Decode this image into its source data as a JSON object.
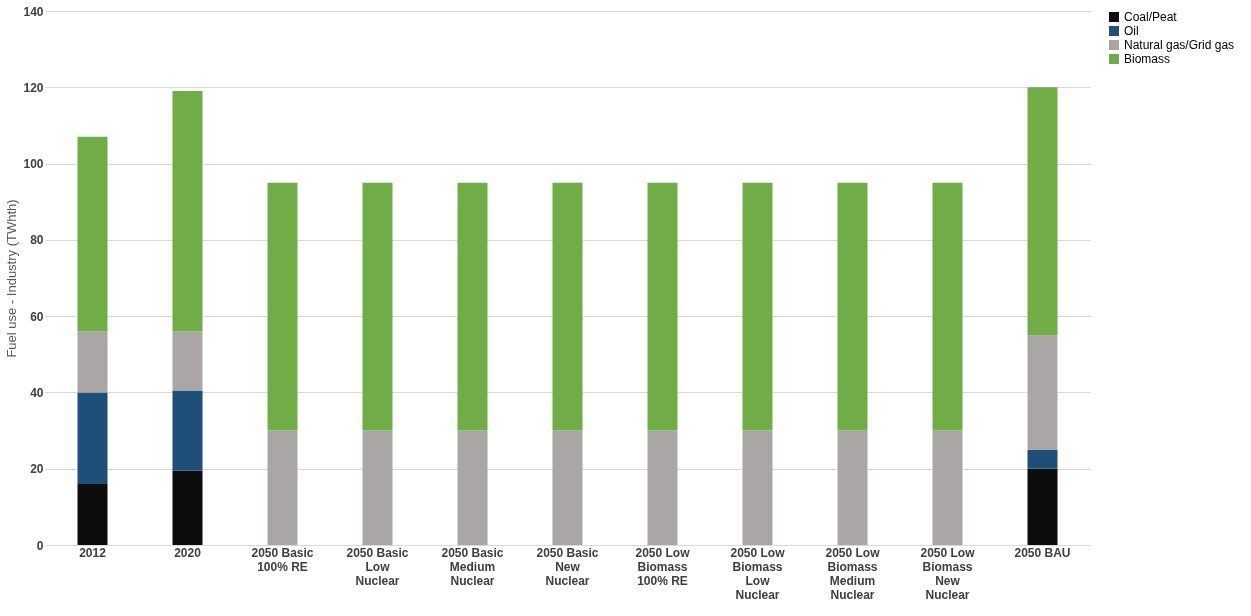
{
  "chart_data": {
    "type": "bar",
    "stacked": true,
    "ylabel": "Fuel use - Industry (TWhth)",
    "categories": [
      "2012",
      "2020",
      "2050 Basic 100% RE",
      "2050 Basic Low Nuclear",
      "2050 Basic Medium Nuclear",
      "2050 Basic New Nuclear",
      "2050 Low Biomass 100% RE",
      "2050 Low Biomass Low Nuclear",
      "2050 Low Biomass Medium Nuclear",
      "2050 Low Biomass New Nuclear",
      "2050 BAU"
    ],
    "series": [
      {
        "name": "Coal/Peat",
        "color": "#0d0d0d",
        "values": [
          16,
          19.5,
          0,
          0,
          0,
          0,
          0,
          0,
          0,
          0,
          20
        ]
      },
      {
        "name": "Oil",
        "color": "#1f4e79",
        "values": [
          24,
          21,
          0,
          0,
          0,
          0,
          0,
          0,
          0,
          0,
          5
        ]
      },
      {
        "name": "Natural gas/Grid gas",
        "color": "#aaa6a6",
        "values": [
          16,
          15.5,
          30,
          30,
          30,
          30,
          30,
          30,
          30,
          30,
          30
        ]
      },
      {
        "name": "Biomass",
        "color": "#70ad47",
        "values": [
          51,
          63,
          65,
          65,
          65,
          65,
          65,
          65,
          65,
          65,
          65
        ]
      }
    ],
    "ylim": [
      0,
      140
    ],
    "yticks": [
      0,
      20,
      40,
      60,
      80,
      100,
      120,
      140
    ],
    "grid": "y",
    "legend": "right"
  }
}
